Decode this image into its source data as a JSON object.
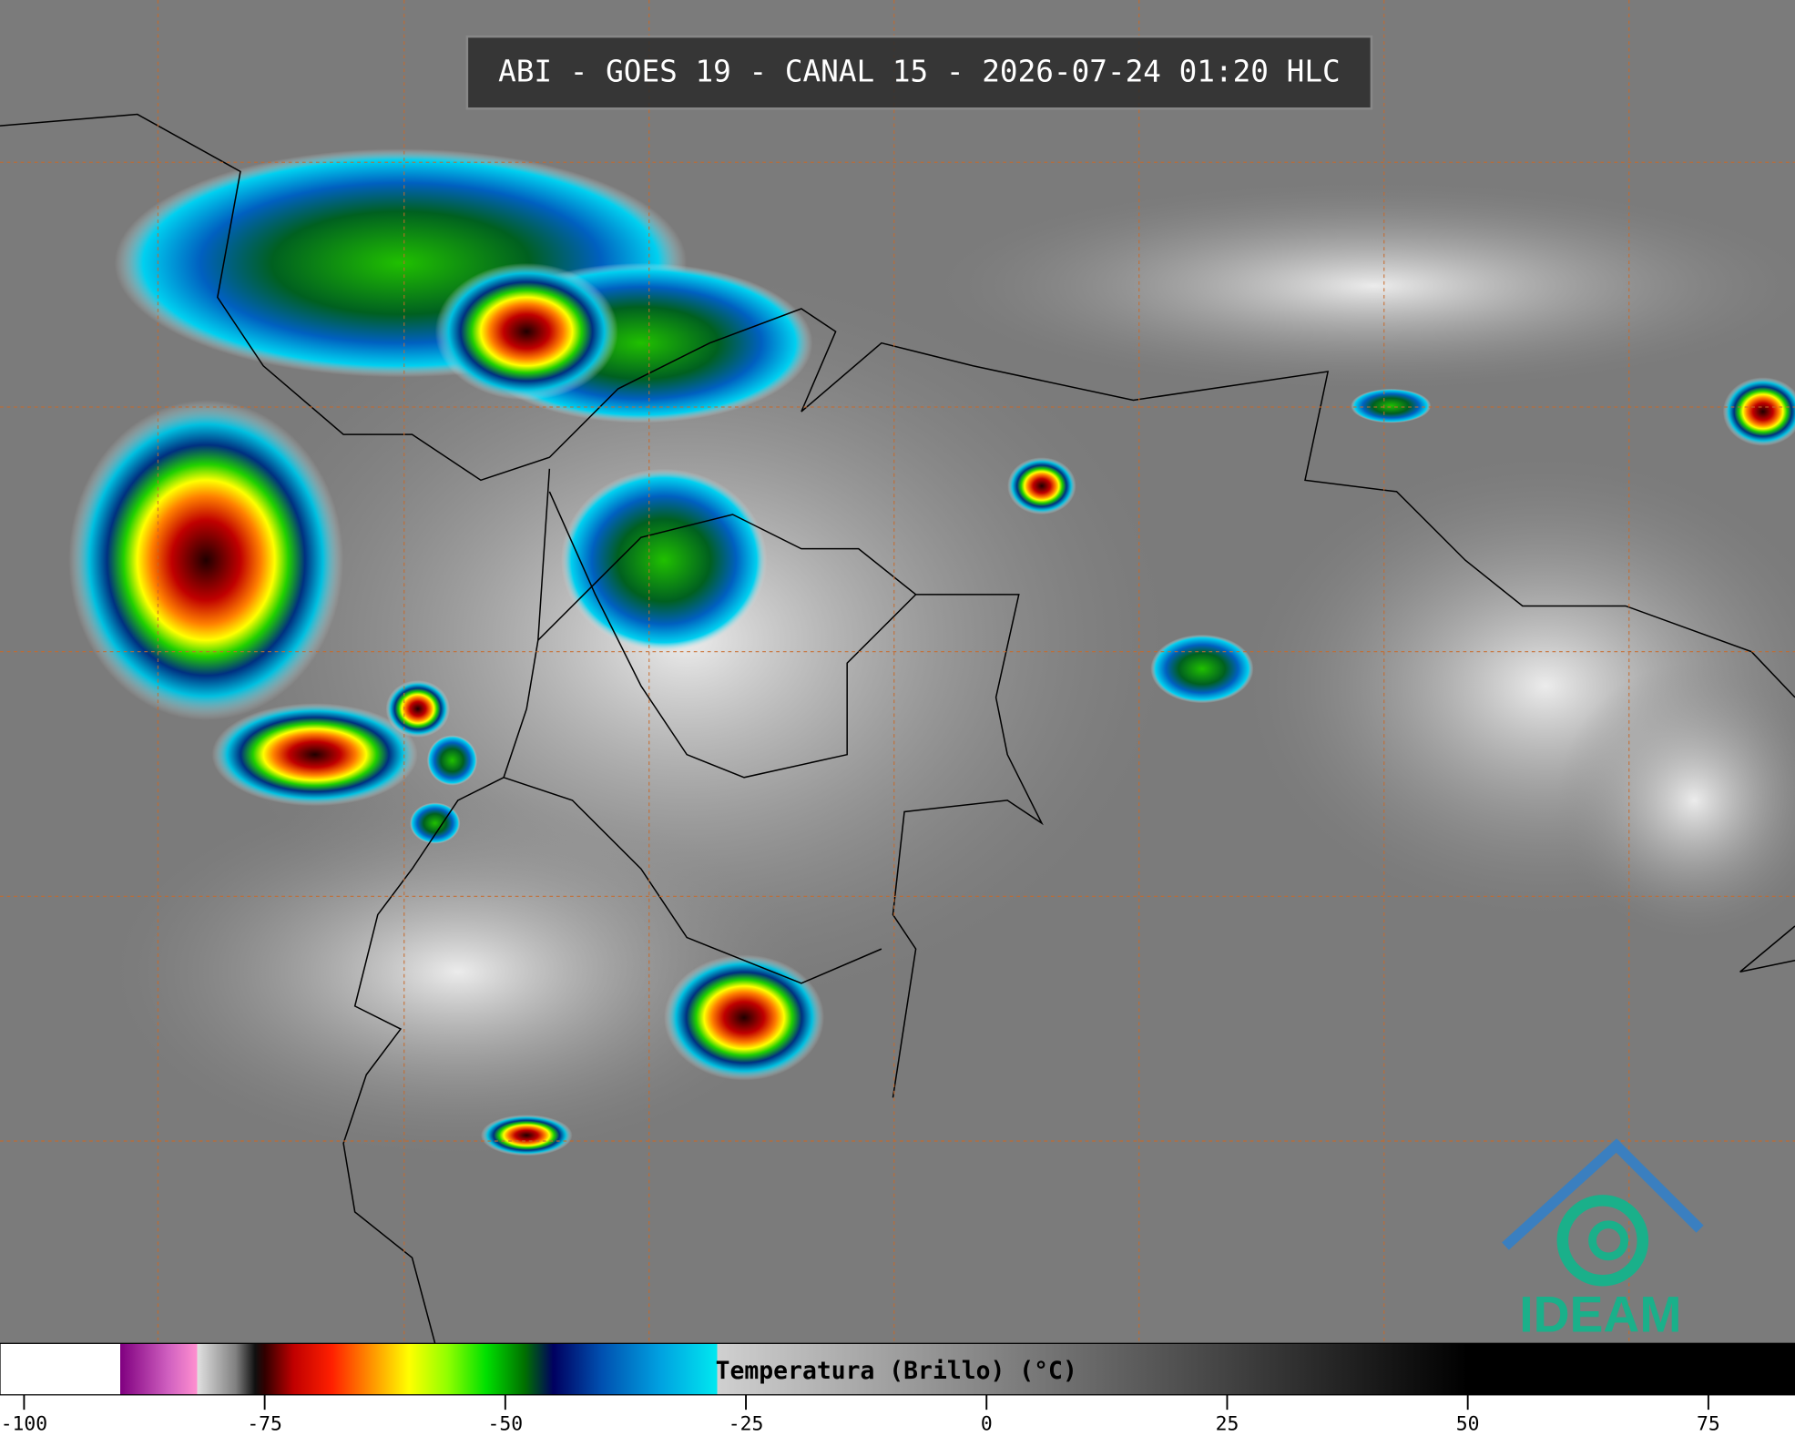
{
  "title": "ABI - GOES 19 - CANAL 15 - 2026-07-24 01:20 HLC",
  "colorbar": {
    "label": "Temperatura (Brillo) (°C)",
    "lim": [
      -102.5,
      84
    ],
    "ticks": [
      -100,
      -75,
      -50,
      -25,
      0,
      25,
      50,
      75
    ],
    "stops": [
      {
        "value": -102.5,
        "color": "#ffffff"
      },
      {
        "value": -90,
        "color": "#ffffff"
      },
      {
        "value": -90,
        "color": "#800080"
      },
      {
        "value": -85,
        "color": "#d060c0"
      },
      {
        "value": -82,
        "color": "#ff90d0"
      },
      {
        "value": -82,
        "color": "#e0e0e0"
      },
      {
        "value": -78,
        "color": "#808080"
      },
      {
        "value": -76,
        "color": "#101010"
      },
      {
        "value": -75,
        "color": "#300000"
      },
      {
        "value": -72,
        "color": "#c00000"
      },
      {
        "value": -68,
        "color": "#ff2000"
      },
      {
        "value": -64,
        "color": "#ff9000"
      },
      {
        "value": -60,
        "color": "#ffff00"
      },
      {
        "value": -56,
        "color": "#90ff00"
      },
      {
        "value": -52,
        "color": "#00e000"
      },
      {
        "value": -48,
        "color": "#007000"
      },
      {
        "value": -45,
        "color": "#000060"
      },
      {
        "value": -40,
        "color": "#0050b0"
      },
      {
        "value": -34,
        "color": "#00a0e0"
      },
      {
        "value": -28,
        "color": "#00e8f0"
      },
      {
        "value": -28,
        "color": "#d0d0d0"
      },
      {
        "value": 50,
        "color": "#000000"
      },
      {
        "value": 84,
        "color": "#000000"
      }
    ]
  },
  "logo": "IDEAM"
}
